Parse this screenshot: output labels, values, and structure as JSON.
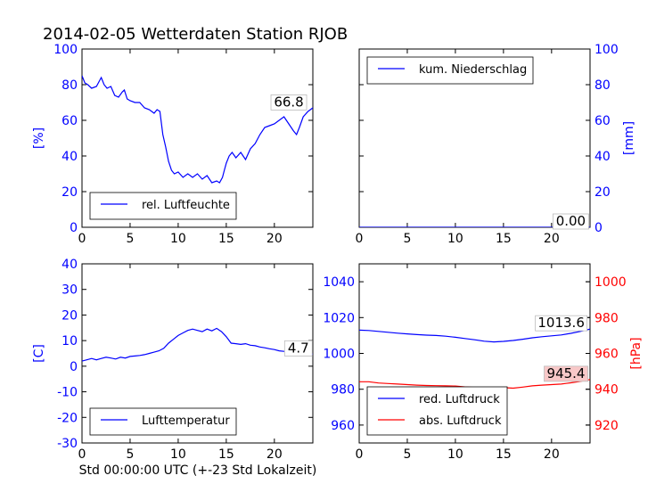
{
  "figure": {
    "title": "2014-02-05 Wetterdaten Station RJOB",
    "xlabel": "Std 00:00:00 UTC (+-23 Std Lokalzeit)"
  },
  "colors": {
    "blue": "#0000ff",
    "red": "#ff0000",
    "black": "#000000",
    "annotation_bg": "#f8c8c8"
  },
  "chart_data": [
    {
      "id": "humidity",
      "type": "line",
      "title": "",
      "xlabel": "",
      "ylabel": "[%]",
      "ylabel_side": "left",
      "xlim": [
        0,
        24
      ],
      "ylim": [
        0,
        100
      ],
      "xticks": [
        0,
        5,
        10,
        15,
        20
      ],
      "yticks": [
        0,
        20,
        40,
        60,
        80,
        100
      ],
      "tick_color": "#0000ff",
      "grid": false,
      "legend": {
        "placement": "bottom-left",
        "entries": [
          "rel. Luftfeuchte"
        ]
      },
      "annotation": {
        "text": "66.8",
        "x": 21.5,
        "y": 66.8
      },
      "series": [
        {
          "name": "rel. Luftfeuchte",
          "color": "#0000ff",
          "x": [
            0,
            0.3,
            0.6,
            1,
            1.5,
            1.8,
            2,
            2.3,
            2.6,
            3,
            3.4,
            3.8,
            4.2,
            4.4,
            4.7,
            5,
            5.5,
            6,
            6.5,
            7,
            7.5,
            7.8,
            8.1,
            8.4,
            8.7,
            9,
            9.3,
            9.6,
            10,
            10.5,
            11,
            11.5,
            12,
            12.5,
            13,
            13.5,
            14,
            14.3,
            14.6,
            14.8,
            15,
            15.3,
            15.6,
            16,
            16.5,
            17,
            17.5,
            18,
            18.5,
            19,
            19.5,
            20,
            20.5,
            21,
            21.5,
            22,
            22.3,
            22.6,
            23,
            23.5,
            24
          ],
          "y": [
            85,
            81,
            80,
            78,
            79,
            82,
            84,
            80,
            78,
            79,
            74,
            73,
            76,
            77,
            72,
            71,
            70,
            70,
            67,
            66,
            64,
            66,
            65,
            52,
            45,
            37,
            32,
            30,
            31,
            28,
            30,
            28,
            30,
            27,
            29,
            25,
            26,
            25,
            28,
            32,
            36,
            40,
            42,
            39,
            42,
            38,
            44,
            47,
            52,
            56,
            57,
            58,
            60,
            62,
            58,
            54,
            52,
            56,
            62,
            65,
            67
          ]
        }
      ]
    },
    {
      "id": "precipitation",
      "type": "line",
      "title": "",
      "xlabel": "",
      "ylabel": "[mm]",
      "ylabel_side": "right",
      "xlim": [
        0,
        24
      ],
      "ylim": [
        0,
        100
      ],
      "xticks": [
        0,
        5,
        10,
        15,
        20
      ],
      "yticks": [
        0,
        20,
        40,
        60,
        80,
        100
      ],
      "tick_color": "#0000ff",
      "grid": false,
      "legend": {
        "placement": "top-left",
        "entries": [
          "kum. Niederschlag"
        ]
      },
      "annotation": {
        "text": "0.00",
        "x": 22,
        "y": 0
      },
      "series": [
        {
          "name": "kum. Niederschlag",
          "color": "#0000ff",
          "x": [
            0,
            24
          ],
          "y": [
            0,
            0
          ]
        }
      ]
    },
    {
      "id": "temperature",
      "type": "line",
      "title": "",
      "xlabel": "Std 00:00:00 UTC (+-23 Std Lokalzeit)",
      "ylabel": "[C]",
      "ylabel_side": "left",
      "xlim": [
        0,
        24
      ],
      "ylim": [
        -30,
        40
      ],
      "xticks": [
        0,
        5,
        10,
        15,
        20
      ],
      "yticks": [
        -30,
        -20,
        -10,
        0,
        10,
        20,
        30,
        40
      ],
      "tick_color": "#0000ff",
      "grid": false,
      "legend": {
        "placement": "bottom-left",
        "entries": [
          "Lufttemperatur"
        ]
      },
      "annotation": {
        "text": "4.7",
        "x": 22.5,
        "y": 4.7
      },
      "series": [
        {
          "name": "Lufttemperatur",
          "color": "#0000ff",
          "x": [
            0,
            0.5,
            1,
            1.5,
            2,
            2.5,
            3,
            3.5,
            4,
            4.5,
            5,
            5.5,
            6,
            6.5,
            7,
            7.5,
            8,
            8.5,
            9,
            9.5,
            10,
            10.5,
            11,
            11.5,
            12,
            12.5,
            13,
            13.5,
            14,
            14.5,
            15,
            15.5,
            16,
            16.5,
            17,
            17.5,
            18,
            18.5,
            19,
            19.5,
            20,
            20.5,
            21,
            21.5,
            22,
            22.5,
            23,
            23.5,
            24
          ],
          "y": [
            2,
            2.5,
            3,
            2.5,
            3,
            3.5,
            3.2,
            2.8,
            3.5,
            3.2,
            3.8,
            4,
            4.2,
            4.5,
            5,
            5.5,
            6,
            7,
            9,
            10.5,
            12,
            13,
            14,
            14.5,
            14,
            13.5,
            14.5,
            13.8,
            14.8,
            13.5,
            11.5,
            9,
            8.8,
            8.5,
            8.8,
            8.2,
            8,
            7.5,
            7.2,
            6.8,
            6.5,
            6,
            5.8,
            5.5,
            5.2,
            5,
            4.8,
            5,
            4.7
          ]
        }
      ]
    },
    {
      "id": "pressure",
      "type": "line",
      "title": "",
      "xlabel": "",
      "ylabel": "",
      "ylabel_right": "[hPa]",
      "xlim": [
        0,
        24
      ],
      "ylim": [
        950,
        1050
      ],
      "ylim_right": [
        910,
        1010
      ],
      "xticks": [
        0,
        5,
        10,
        15,
        20
      ],
      "yticks": [
        960,
        980,
        1000,
        1020,
        1040
      ],
      "yticks_right": [
        920,
        940,
        960,
        980,
        1000
      ],
      "tick_color": "#0000ff",
      "tick_color_right": "#ff0000",
      "grid": false,
      "legend": {
        "placement": "bottom-left",
        "entries": [
          "red. Luftdruck",
          "abs. Luftdruck"
        ]
      },
      "annotations": [
        {
          "text": "1013.6",
          "x": 21,
          "y": 1013.6,
          "axis": "left"
        },
        {
          "text": "945.4",
          "x": 21.5,
          "y": 945.4,
          "axis": "right"
        }
      ],
      "series": [
        {
          "name": "red. Luftdruck",
          "color": "#0000ff",
          "axis": "left",
          "x": [
            0,
            1,
            2,
            3,
            4,
            5,
            6,
            7,
            8,
            9,
            10,
            11,
            12,
            13,
            14,
            15,
            16,
            17,
            18,
            19,
            20,
            21,
            22,
            23,
            24
          ],
          "y": [
            1013,
            1012.8,
            1012.3,
            1011.8,
            1011.3,
            1010.9,
            1010.5,
            1010.2,
            1010,
            1009.6,
            1009,
            1008.3,
            1007.6,
            1006.8,
            1006.4,
            1006.7,
            1007.2,
            1007.9,
            1008.7,
            1009.3,
            1009.8,
            1010.3,
            1011.2,
            1012.3,
            1013.6
          ]
        },
        {
          "name": "abs. Luftdruck",
          "color": "#ff0000",
          "axis": "right",
          "x": [
            0,
            1,
            2,
            3,
            4,
            5,
            6,
            7,
            8,
            9,
            10,
            11,
            12,
            13,
            14,
            15,
            16,
            17,
            18,
            19,
            20,
            21,
            22,
            23,
            24
          ],
          "y": [
            944.2,
            944.2,
            943.5,
            943.2,
            942.9,
            942.6,
            942.3,
            942.1,
            942,
            941.9,
            941.8,
            941.3,
            941,
            940.3,
            940.7,
            940.9,
            940.6,
            941.2,
            941.9,
            942.3,
            942.6,
            942.9,
            943.6,
            944.4,
            945.4
          ]
        }
      ]
    }
  ]
}
